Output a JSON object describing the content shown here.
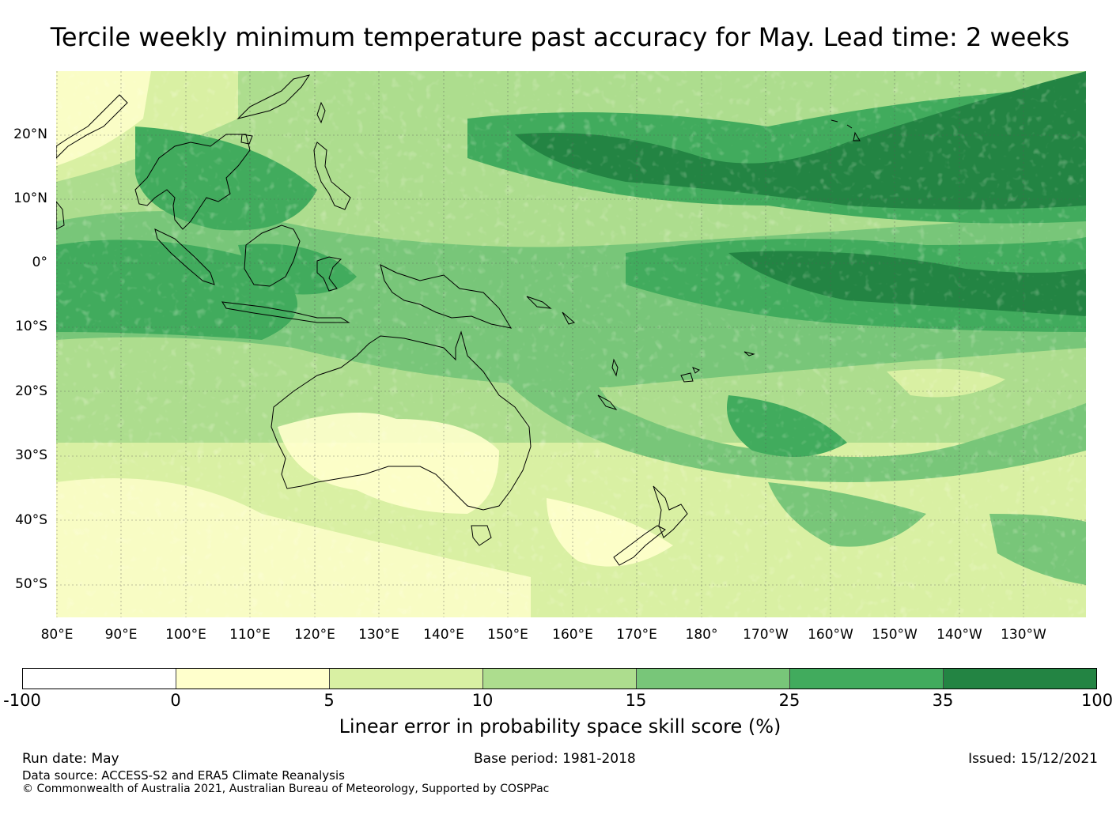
{
  "title": "Tercile weekly minimum temperature past accuracy for May. Lead time: 2 weeks",
  "lat_labels": [
    "20°N",
    "10°N",
    "0°",
    "10°S",
    "20°S",
    "30°S",
    "40°S",
    "50°S"
  ],
  "lon_labels": [
    "80°E",
    "90°E",
    "100°E",
    "110°E",
    "120°E",
    "130°E",
    "140°E",
    "150°E",
    "160°E",
    "170°E",
    "180°",
    "170°W",
    "160°W",
    "150°W",
    "140°W",
    "130°W"
  ],
  "colorbar": {
    "label": "Linear error in probability space skill score (%)",
    "ticks": [
      "-100",
      "0",
      "5",
      "10",
      "15",
      "25",
      "35",
      "100"
    ],
    "colors": [
      "#ffffff",
      "#ffffcc",
      "#d9f0a3",
      "#addd8e",
      "#78c679",
      "#41ab5d",
      "#238443"
    ]
  },
  "footer": {
    "run_date": "Run date: May",
    "base_period": "Base period: 1981-2018",
    "issued": "Issued: 15/12/2021",
    "data_source": "Data source: ACCESS-S2 and ERA5 Climate Reanalysis",
    "copyright": "© Commonwealth of Australia 2021, Australian Bureau of Meteorology, Supported by COSPPac"
  }
}
